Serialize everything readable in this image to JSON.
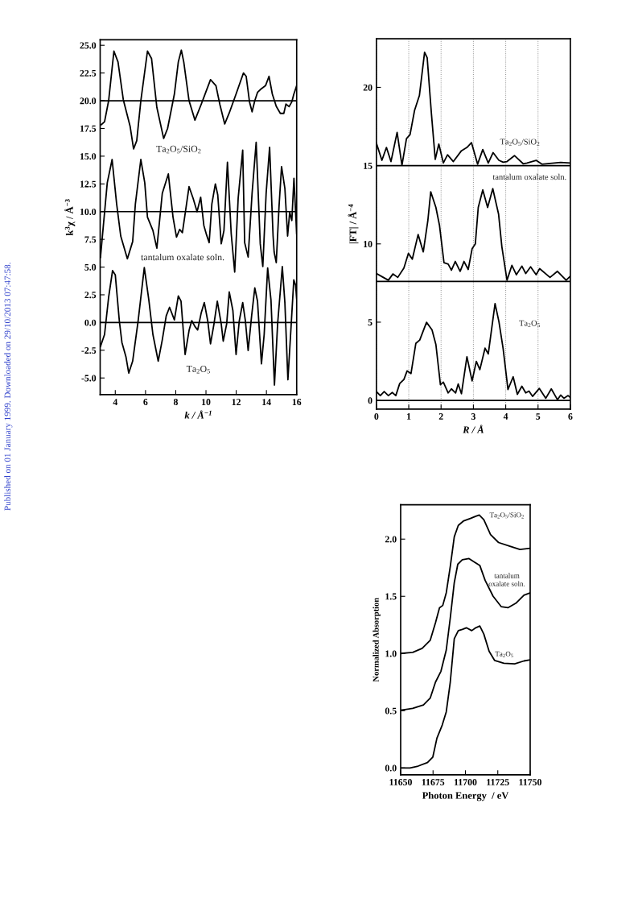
{
  "chart_data": [
    {
      "type": "line",
      "xlabel": "k / Å$^{−1}$",
      "ylabel": "k$^{3}$χ / Å$^{−3}$",
      "xlim": [
        3,
        16
      ],
      "xticks": [
        4,
        6,
        8,
        10,
        12,
        14,
        16
      ],
      "ylim": [
        -6.5,
        25.5
      ],
      "yticks": [
        {
          "value": -5,
          "label": "-5.0"
        },
        {
          "value": -2.5,
          "label": "-2.5"
        },
        {
          "value": 0,
          "label": "0.0"
        },
        {
          "value": 2.5,
          "label": "2.5"
        },
        {
          "value": 5,
          "label": "5.0"
        },
        {
          "value": 7.5,
          "label": "7.5"
        },
        {
          "value": 10,
          "label": "10.0"
        },
        {
          "value": 12.5,
          "label": "12.5"
        },
        {
          "value": 15,
          "label": "15.0"
        },
        {
          "value": 17.5,
          "label": "17.5"
        },
        {
          "value": 20,
          "label": "20.0"
        },
        {
          "value": 22.5,
          "label": "22.5"
        },
        {
          "value": 25,
          "label": "25.0"
        }
      ],
      "grid": false,
      "ref_lines": [
        {
          "axis": "y",
          "value": 20,
          "color": "#000000"
        },
        {
          "axis": "y",
          "value": 10,
          "color": "#000000"
        },
        {
          "axis": "y",
          "value": 0,
          "color": "#000000"
        }
      ],
      "annotations": [
        "Published on 01 January 1999. Downloaded on 29/10/2013 07:47:58."
      ],
      "series": [
        {
          "name": "Ta$_{2}$O$_{5}$/SiO$_{2}$",
          "color": "#000000",
          "x": [
            3.08,
            3.29,
            3.56,
            3.91,
            4.18,
            4.53,
            4.98,
            5.21,
            5.42,
            5.69,
            6.13,
            6.4,
            6.75,
            7.2,
            7.46,
            7.91,
            8.17,
            8.37,
            8.53,
            8.88,
            9.27,
            9.68,
            10.3,
            10.66,
            10.92,
            11.24,
            11.54,
            11.99,
            12.34,
            12.48,
            12.66,
            12.88,
            13.05,
            13.23,
            13.41,
            13.59,
            13.94,
            14.17,
            14.39,
            14.65,
            14.92,
            15.15,
            15.29,
            15.5,
            15.68,
            15.81,
            16.0
          ],
          "values": [
            17.84,
            18.1,
            20.0,
            24.47,
            23.5,
            20.1,
            17.7,
            15.65,
            16.4,
            20.0,
            24.47,
            23.8,
            19.4,
            16.6,
            17.5,
            20.6,
            23.5,
            24.56,
            23.5,
            20.0,
            18.25,
            19.66,
            21.9,
            21.36,
            19.66,
            17.9,
            18.9,
            20.6,
            21.97,
            22.5,
            22.2,
            19.9,
            19.0,
            20.0,
            20.75,
            21.0,
            21.36,
            22.2,
            20.6,
            19.5,
            18.86,
            18.86,
            19.7,
            19.47,
            19.9,
            20.58,
            21.36
          ]
        },
        {
          "name": "tantalum oxalate soln.",
          "color": "#000000",
          "x": [
            3.02,
            3.47,
            3.79,
            4.09,
            4.36,
            4.8,
            5.15,
            5.33,
            5.69,
            5.95,
            6.13,
            6.49,
            6.75,
            7.11,
            7.51,
            7.82,
            8.05,
            8.26,
            8.44,
            8.88,
            9.15,
            9.41,
            9.65,
            9.86,
            10.04,
            10.21,
            10.39,
            10.62,
            10.78,
            11.01,
            11.19,
            11.42,
            11.67,
            11.9,
            12.13,
            12.43,
            12.56,
            12.79,
            13.05,
            13.32,
            13.59,
            13.76,
            13.98,
            14.21,
            14.44,
            14.51,
            14.65,
            14.83,
            15.0,
            15.22,
            15.4,
            15.54,
            15.68,
            15.82,
            16.0
          ],
          "values": [
            5.88,
            12.6,
            14.7,
            10.7,
            7.8,
            5.75,
            7.3,
            10.7,
            14.7,
            12.6,
            9.5,
            8.3,
            6.7,
            11.65,
            13.4,
            9.5,
            7.7,
            8.4,
            8.1,
            12.25,
            11.2,
            10.0,
            11.3,
            8.75,
            7.9,
            7.2,
            10.7,
            12.5,
            11.5,
            7.1,
            8.3,
            14.45,
            8.0,
            4.55,
            11.2,
            15.55,
            7.2,
            5.9,
            11.65,
            16.26,
            7.1,
            5.05,
            11.65,
            15.8,
            7.8,
            6.35,
            5.4,
            10.4,
            14.06,
            12.1,
            7.8,
            9.95,
            9.2,
            13.0,
            8.0
          ]
        },
        {
          "name": "Ta$_{2}$O$_{5}$",
          "color": "#000000",
          "x": [
            3.02,
            3.29,
            3.56,
            3.82,
            4.0,
            4.27,
            4.44,
            4.71,
            4.89,
            5.15,
            5.51,
            5.92,
            6.22,
            6.49,
            6.84,
            7.11,
            7.37,
            7.59,
            7.91,
            8.17,
            8.35,
            8.62,
            8.88,
            9.06,
            9.27,
            9.45,
            9.68,
            9.89,
            10.12,
            10.3,
            10.53,
            10.75,
            11.01,
            11.14,
            11.37,
            11.54,
            11.78,
            11.99,
            12.2,
            12.43,
            12.61,
            12.79,
            13.02,
            13.23,
            13.41,
            13.67,
            13.85,
            14.08,
            14.3,
            14.53,
            14.74,
            15.05,
            15.22,
            15.42,
            15.63,
            15.81,
            15.93,
            16.0
          ],
          "values": [
            -2.16,
            -1.08,
            2.28,
            4.68,
            4.3,
            0.12,
            -1.8,
            -3.12,
            -4.56,
            -3.48,
            0.12,
            4.96,
            2.04,
            -1.08,
            -3.48,
            -1.56,
            0.6,
            1.37,
            0.24,
            2.4,
            1.92,
            -2.88,
            -0.72,
            0.17,
            -0.36,
            -0.67,
            0.84,
            1.8,
            0.12,
            -1.92,
            -0.12,
            1.92,
            -0.12,
            -1.68,
            -0.12,
            2.76,
            1.08,
            -2.88,
            0.12,
            1.8,
            0.12,
            -2.52,
            0.6,
            3.12,
            1.92,
            -3.72,
            -1.08,
            4.92,
            2.04,
            -5.64,
            -0.12,
            5.04,
            1.8,
            -5.16,
            -0.36,
            3.84,
            3.36,
            2.16
          ]
        }
      ]
    },
    {
      "type": "line",
      "xlabel": "R / Å",
      "ylabel": "|FT| / Å$^{−4}$",
      "xlim": [
        0,
        6
      ],
      "xticks": [
        0,
        1,
        2,
        3,
        4,
        5,
        6
      ],
      "ylim": [
        -0.55,
        23.1
      ],
      "yticks": [
        0,
        5,
        10,
        15,
        20
      ],
      "grid": "x",
      "ref_lines": [
        {
          "axis": "y",
          "value": 15,
          "color": "#000000"
        },
        {
          "axis": "y",
          "value": 7.6,
          "color": "#000000"
        },
        {
          "axis": "y",
          "value": 0,
          "color": "#000000"
        }
      ],
      "series": [
        {
          "name": "Ta$_{2}$O$_{5}$/SiO$_{2}$",
          "color": "#000000",
          "x": [
            0,
            0.17,
            0.31,
            0.45,
            0.64,
            0.79,
            0.93,
            1.04,
            1.18,
            1.33,
            1.49,
            1.57,
            1.7,
            1.82,
            1.93,
            2.07,
            2.2,
            2.38,
            2.63,
            2.8,
            2.94,
            3.13,
            3.29,
            3.46,
            3.61,
            3.79,
            3.92,
            4.04,
            4.27,
            4.54,
            4.66,
            4.94,
            5.12,
            5.37,
            5.7,
            6.0
          ],
          "values": [
            16.43,
            15.34,
            16.16,
            15.26,
            17.12,
            15.03,
            16.72,
            16.98,
            18.53,
            19.48,
            22.24,
            21.9,
            18.36,
            15.4,
            16.38,
            15.17,
            15.69,
            15.26,
            15.95,
            16.16,
            16.47,
            15.09,
            16.03,
            15.17,
            15.83,
            15.34,
            15.22,
            15.26,
            15.64,
            15.12,
            15.17,
            15.34,
            15.09,
            15.14,
            15.21,
            15.17
          ]
        },
        {
          "name": "tantalum oxalate soln.",
          "color": "#000000",
          "x": [
            0,
            0.18,
            0.37,
            0.51,
            0.66,
            0.85,
            0.99,
            1.11,
            1.29,
            1.45,
            1.59,
            1.68,
            1.84,
            1.95,
            2.09,
            2.22,
            2.32,
            2.44,
            2.59,
            2.71,
            2.84,
            2.96,
            3.06,
            3.15,
            3.29,
            3.44,
            3.6,
            3.78,
            3.88,
            4.04,
            4.19,
            4.33,
            4.5,
            4.62,
            4.77,
            4.94,
            5.05,
            5.37,
            5.6,
            5.87,
            6.0
          ],
          "values": [
            8.11,
            7.9,
            7.68,
            8.08,
            7.86,
            8.46,
            9.4,
            9.02,
            10.6,
            9.49,
            11.47,
            13.33,
            12.33,
            11.2,
            8.8,
            8.71,
            8.32,
            8.88,
            8.25,
            8.88,
            8.37,
            9.69,
            10.0,
            12.33,
            13.45,
            12.33,
            13.53,
            11.89,
            9.83,
            7.68,
            8.63,
            8.03,
            8.58,
            8.11,
            8.54,
            8.03,
            8.42,
            7.86,
            8.25,
            7.68,
            7.94
          ]
        },
        {
          "name": "Ta$_{2}$O$_{5}$",
          "color": "#000000",
          "x": [
            0,
            0.12,
            0.24,
            0.37,
            0.49,
            0.6,
            0.72,
            0.85,
            0.95,
            1.07,
            1.22,
            1.34,
            1.55,
            1.72,
            1.84,
            1.98,
            2.07,
            2.22,
            2.32,
            2.45,
            2.53,
            2.63,
            2.8,
            2.96,
            3.09,
            3.2,
            3.36,
            3.46,
            3.67,
            3.79,
            3.92,
            4.07,
            4.23,
            4.36,
            4.5,
            4.62,
            4.72,
            4.83,
            5.04,
            5.24,
            5.41,
            5.6,
            5.7,
            5.8,
            5.93,
            6.0
          ],
          "values": [
            0.57,
            0.31,
            0.57,
            0.31,
            0.51,
            0.31,
            1.08,
            1.34,
            1.89,
            1.72,
            3.65,
            3.86,
            4.99,
            4.51,
            3.57,
            1.0,
            1.17,
            0.48,
            0.74,
            0.48,
            1.05,
            0.43,
            2.79,
            1.25,
            2.49,
            1.97,
            3.34,
            2.97,
            6.19,
            5.03,
            3.31,
            0.7,
            1.51,
            0.39,
            0.91,
            0.48,
            0.6,
            0.26,
            0.77,
            0.14,
            0.74,
            0.05,
            0.34,
            0.14,
            0.31,
            0.19
          ]
        }
      ]
    },
    {
      "type": "line",
      "xlabel": "Photon Energy  / eV",
      "ylabel": "Normalized Absorption",
      "xlim": [
        11650,
        11750
      ],
      "xticks": [
        11650,
        11675,
        11700,
        11725,
        11750
      ],
      "ylim": [
        -0.06,
        2.3
      ],
      "yticks": [
        {
          "value": 0,
          "label": "0.0"
        },
        {
          "value": 0.5,
          "label": "0.5"
        },
        {
          "value": 1.0,
          "label": "1.0"
        },
        {
          "value": 1.5,
          "label": "1.5"
        },
        {
          "value": 2.0,
          "label": "2.0"
        }
      ],
      "grid": false,
      "series": [
        {
          "name": "Ta$_{2}$O$_{5}$/SiO$_{2}$",
          "color": "#000000",
          "x": [
            11650,
            11659.3,
            11666.6,
            11672.8,
            11676.9,
            11680.0,
            11682.5,
            11685.2,
            11688.3,
            11691.4,
            11694.5,
            11698.7,
            11703.8,
            11708.0,
            11710.7,
            11714.2,
            11719.4,
            11725.6,
            11733.9,
            11742.1,
            11750
          ],
          "values": [
            1.0,
            1.01,
            1.045,
            1.115,
            1.27,
            1.4,
            1.42,
            1.53,
            1.76,
            2.02,
            2.12,
            2.16,
            2.18,
            2.2,
            2.21,
            2.17,
            2.04,
            1.97,
            1.94,
            1.91,
            1.92
          ]
        },
        {
          "name": "tantalum\noxalate soln.",
          "color": "#000000",
          "x": [
            11650,
            11659.3,
            11667.6,
            11672.8,
            11676.9,
            11681.1,
            11685.2,
            11688.3,
            11691.4,
            11694.1,
            11697.6,
            11702.8,
            11706.9,
            11711.1,
            11715.2,
            11721.4,
            11727.6,
            11732.8,
            11739.0,
            11745.2,
            11750
          ],
          "values": [
            0.505,
            0.52,
            0.55,
            0.61,
            0.75,
            0.845,
            1.03,
            1.31,
            1.62,
            1.78,
            1.82,
            1.83,
            1.8,
            1.77,
            1.64,
            1.5,
            1.41,
            1.4,
            1.44,
            1.51,
            1.53
          ]
        },
        {
          "name": "Ta$_{2}$O$_{5}$",
          "color": "#000000",
          "x": [
            11650,
            11657.2,
            11663.5,
            11670.7,
            11674.8,
            11678.0,
            11682.1,
            11685.2,
            11688.3,
            11691.4,
            11694.5,
            11697.6,
            11700.7,
            11704.9,
            11708.0,
            11711.1,
            11714.2,
            11718.3,
            11722.5,
            11729.7,
            11738.0,
            11745.2,
            11750
          ],
          "values": [
            0.0,
            0.0,
            0.016,
            0.047,
            0.094,
            0.26,
            0.375,
            0.49,
            0.75,
            1.13,
            1.2,
            1.21,
            1.225,
            1.2,
            1.225,
            1.24,
            1.17,
            1.02,
            0.94,
            0.915,
            0.91,
            0.935,
            0.945
          ]
        }
      ]
    }
  ]
}
